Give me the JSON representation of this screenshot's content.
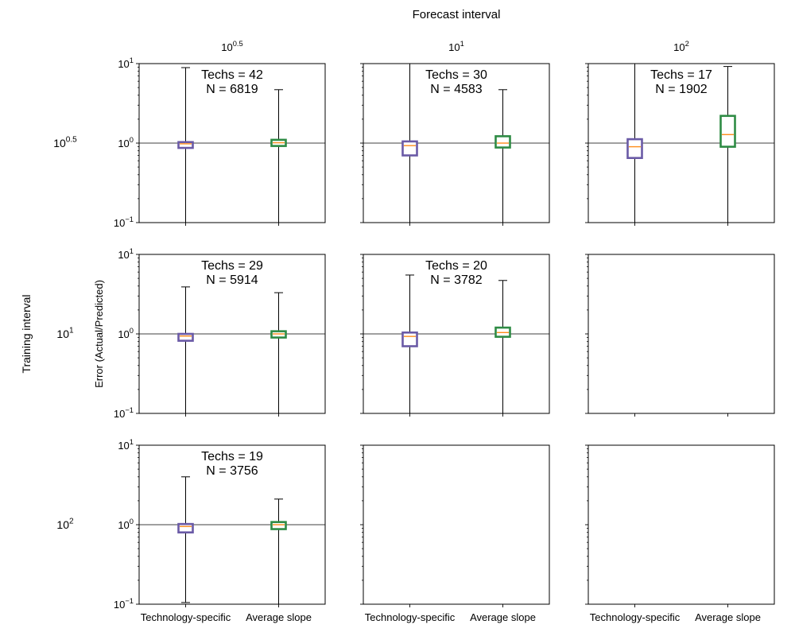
{
  "figure": {
    "title": "Forecast interval",
    "row_title": "Training interval",
    "ylabel": "Error (Actual/Predicted)",
    "column_labels": [
      {
        "base": "10",
        "exp": "0.5"
      },
      {
        "base": "10",
        "exp": "1"
      },
      {
        "base": "10",
        "exp": "2"
      }
    ],
    "row_labels": [
      {
        "base": "10",
        "exp": "0.5"
      },
      {
        "base": "10",
        "exp": "1"
      },
      {
        "base": "10",
        "exp": "2"
      }
    ],
    "y_tick_labels": [
      {
        "base": "10",
        "exp": "1"
      },
      {
        "base": "10",
        "exp": "0"
      },
      {
        "base": "10",
        "exp": "−1"
      }
    ],
    "reference_line": 1,
    "colors": {
      "technology_specific": "#6a5aa6",
      "average_slope": "#2e8b44",
      "median": "#ff8c1a",
      "reference": "#808080"
    }
  },
  "chart_data": {
    "type": "box",
    "scale": "log",
    "ylim": [
      0.1,
      10
    ],
    "categories": [
      "Technology-specific",
      "Average slope"
    ],
    "grid": false,
    "panels": [
      {
        "row": 0,
        "col": 0,
        "annotation": [
          "Techs = 42",
          "N = 6819"
        ],
        "boxes": [
          {
            "q1": 0.87,
            "median": 0.98,
            "q3": 1.03,
            "whisker_low": 0.1,
            "whisker_high": 8.9
          },
          {
            "q1": 0.92,
            "median": 1.01,
            "q3": 1.1,
            "whisker_low": 0.1,
            "whisker_high": 4.7
          }
        ]
      },
      {
        "row": 0,
        "col": 1,
        "annotation": [
          "Techs = 30",
          "N = 4583"
        ],
        "boxes": [
          {
            "q1": 0.7,
            "median": 0.93,
            "q3": 1.05,
            "whisker_low": 0.1,
            "whisker_high": 10
          },
          {
            "q1": 0.88,
            "median": 1.0,
            "q3": 1.22,
            "whisker_low": 0.1,
            "whisker_high": 4.7
          }
        ]
      },
      {
        "row": 0,
        "col": 2,
        "annotation": [
          "Techs = 17",
          "N = 1902"
        ],
        "boxes": [
          {
            "q1": 0.65,
            "median": 0.9,
            "q3": 1.12,
            "whisker_low": 0.1,
            "whisker_high": 10
          },
          {
            "q1": 0.9,
            "median": 1.28,
            "q3": 2.2,
            "whisker_low": 0.1,
            "whisker_high": 9.2
          }
        ]
      },
      {
        "row": 1,
        "col": 0,
        "annotation": [
          "Techs = 29",
          "N = 5914"
        ],
        "boxes": [
          {
            "q1": 0.82,
            "median": 0.94,
            "q3": 1.0,
            "whisker_low": 0.1,
            "whisker_high": 3.9
          },
          {
            "q1": 0.9,
            "median": 1.0,
            "q3": 1.08,
            "whisker_low": 0.1,
            "whisker_high": 3.3
          }
        ]
      },
      {
        "row": 1,
        "col": 1,
        "annotation": [
          "Techs = 20",
          "N = 3782"
        ],
        "boxes": [
          {
            "q1": 0.7,
            "median": 0.93,
            "q3": 1.04,
            "whisker_low": 0.1,
            "whisker_high": 5.5
          },
          {
            "q1": 0.92,
            "median": 1.04,
            "q3": 1.2,
            "whisker_low": 0.1,
            "whisker_high": 4.7
          }
        ]
      },
      {
        "row": 1,
        "col": 2,
        "annotation": [],
        "boxes": []
      },
      {
        "row": 2,
        "col": 0,
        "annotation": [
          "Techs = 19",
          "N = 3756"
        ],
        "boxes": [
          {
            "q1": 0.8,
            "median": 0.95,
            "q3": 1.02,
            "whisker_low": 0.105,
            "whisker_high": 4.0
          },
          {
            "q1": 0.88,
            "median": 1.0,
            "q3": 1.08,
            "whisker_low": 0.1,
            "whisker_high": 2.1
          }
        ]
      },
      {
        "row": 2,
        "col": 1,
        "annotation": [],
        "boxes": []
      },
      {
        "row": 2,
        "col": 2,
        "annotation": [],
        "boxes": []
      }
    ]
  }
}
